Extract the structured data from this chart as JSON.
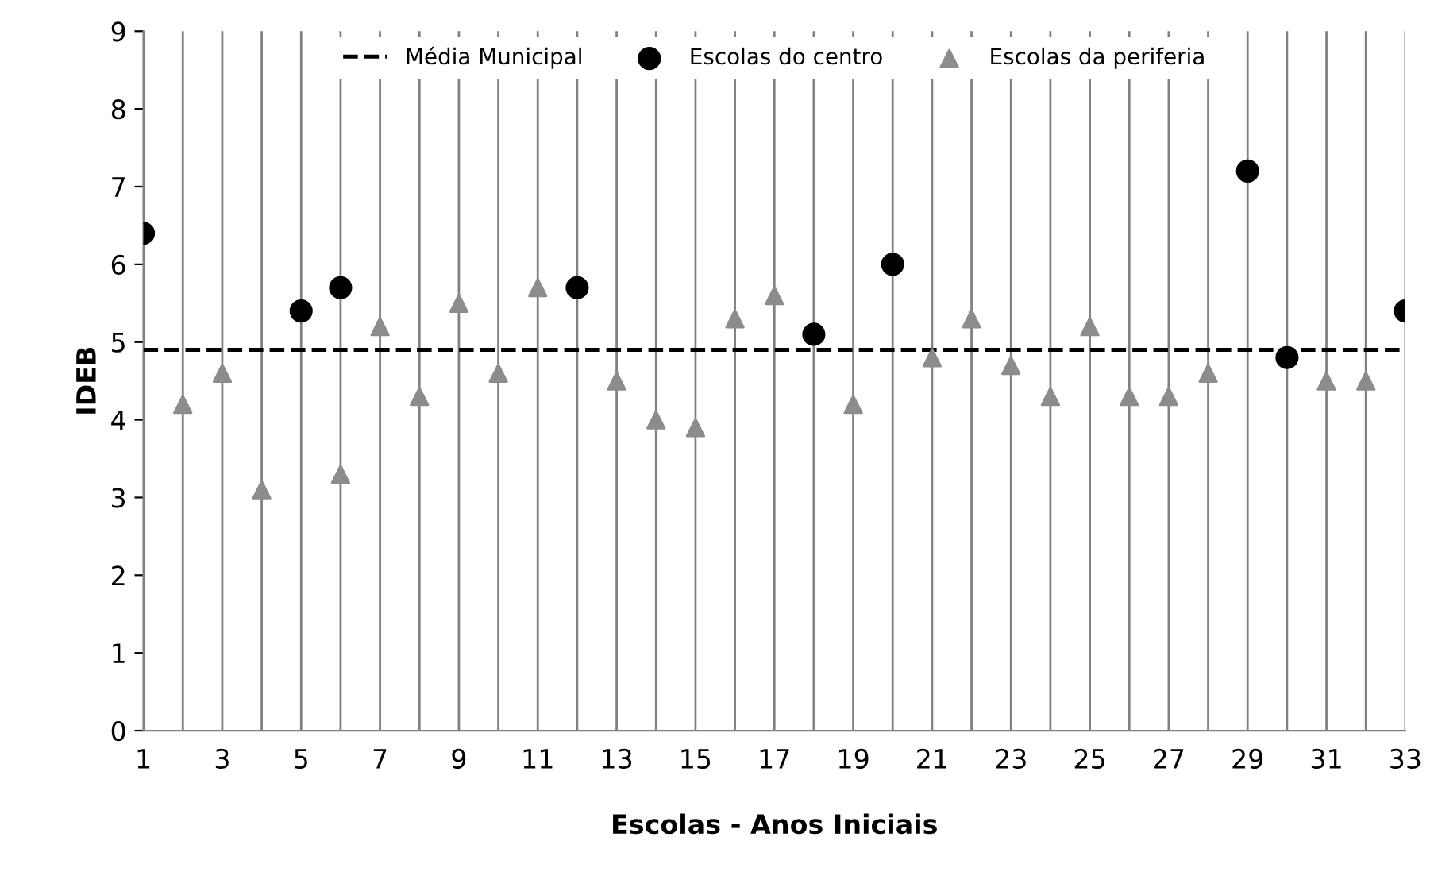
{
  "chart_data": {
    "type": "scatter",
    "xlabel": "Escolas - Anos Iniciais",
    "ylabel": "IDEB",
    "xlim": [
      1,
      33
    ],
    "ylim": [
      0,
      9
    ],
    "xticks": [
      1,
      {
        "value": 2,
        "label": null
      },
      3,
      {
        "value": 4,
        "label": null
      },
      5,
      {
        "value": 6,
        "label": null
      },
      7,
      {
        "value": 8,
        "label": null
      },
      9,
      {
        "value": 10,
        "label": null
      },
      11,
      {
        "value": 12,
        "label": null
      },
      13,
      {
        "value": 14,
        "label": null
      },
      15,
      {
        "value": 16,
        "label": null
      },
      17,
      {
        "value": 18,
        "label": null
      },
      19,
      {
        "value": 20,
        "label": null
      },
      21,
      {
        "value": 22,
        "label": null
      },
      23,
      {
        "value": 24,
        "label": null
      },
      25,
      {
        "value": 26,
        "label": null
      },
      27,
      {
        "value": 28,
        "label": null
      },
      29,
      {
        "value": 30,
        "label": null
      },
      31,
      {
        "value": 32,
        "label": null
      },
      33
    ],
    "yticks": [
      0,
      1,
      2,
      3,
      4,
      5,
      6,
      7,
      8,
      9
    ],
    "grid": "x",
    "legend": "top",
    "series": [
      {
        "name": "Média Municipal",
        "type": "line",
        "color": "#000000",
        "line_style": "dashed",
        "marker": "none",
        "x": [
          1,
          33
        ],
        "values": [
          4.9,
          4.9
        ]
      },
      {
        "name": "Escolas do centro",
        "color": "#000000",
        "marker": "circle",
        "x": [
          1,
          5,
          6,
          12,
          18,
          20,
          29,
          30,
          33
        ],
        "values": [
          6.4,
          5.4,
          5.7,
          5.7,
          5.1,
          6.0,
          7.2,
          4.8,
          5.4
        ]
      },
      {
        "name": "Escolas da periferia",
        "color": "#8c8c8c",
        "marker": "triangle",
        "x": [
          2,
          3,
          4,
          6,
          7,
          8,
          9,
          10,
          11,
          13,
          14,
          15,
          16,
          17,
          19,
          21,
          22,
          23,
          24,
          25,
          26,
          27,
          28,
          31,
          32
        ],
        "values": [
          4.2,
          4.6,
          3.1,
          3.3,
          5.2,
          4.3,
          5.5,
          4.6,
          5.7,
          4.5,
          4.0,
          3.9,
          5.3,
          5.6,
          4.2,
          4.8,
          5.3,
          4.7,
          4.3,
          5.2,
          4.3,
          4.3,
          4.6,
          4.5,
          4.5
        ]
      }
    ]
  }
}
